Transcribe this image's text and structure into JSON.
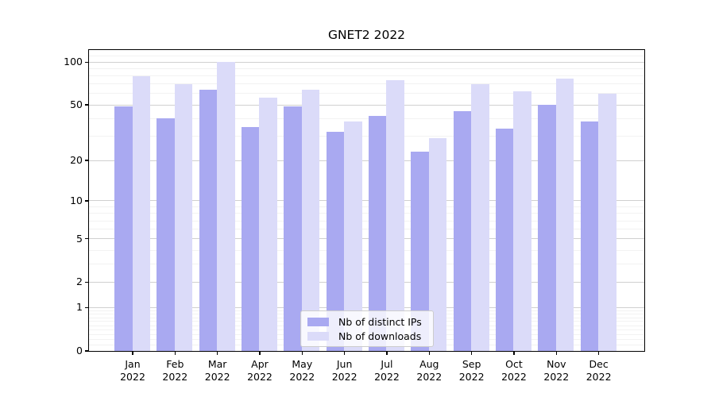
{
  "title": "GNET2 2022",
  "chart_data": {
    "type": "bar",
    "title": "GNET2 2022",
    "categories": [
      "Jan 2022",
      "Feb 2022",
      "Mar 2022",
      "Apr 2022",
      "May 2022",
      "Jun 2022",
      "Jul 2022",
      "Aug 2022",
      "Sep 2022",
      "Oct 2022",
      "Nov 2022",
      "Dec 2022"
    ],
    "series": [
      {
        "name": "Nb of distinct IPs",
        "color": "#a9a9f1",
        "values": [
          49,
          40,
          64,
          35,
          49,
          32,
          42,
          23,
          45,
          34,
          50,
          38
        ]
      },
      {
        "name": "Nb of downloads",
        "color": "#dbdbf9",
        "values": [
          80,
          70,
          100,
          56,
          64,
          38,
          75,
          29,
          70,
          62,
          77,
          60
        ]
      }
    ],
    "xlabel": "",
    "ylabel": "",
    "yscale": "log1p",
    "yticks": [
      0,
      1,
      2,
      5,
      10,
      20,
      50,
      100
    ],
    "minor_yticks": [
      0.1,
      0.2,
      0.3,
      0.4,
      0.5,
      0.6,
      0.7,
      0.8,
      0.9,
      3,
      4,
      6,
      7,
      8,
      9,
      30,
      40,
      60,
      70,
      80,
      90,
      110
    ],
    "ylim": [
      0,
      121.5
    ],
    "grid": true,
    "legend_position": "lower center",
    "colors": {
      "major_grid": "#d0d0d0",
      "minor_grid": "#f2f2f2",
      "axis": "#000000"
    }
  }
}
